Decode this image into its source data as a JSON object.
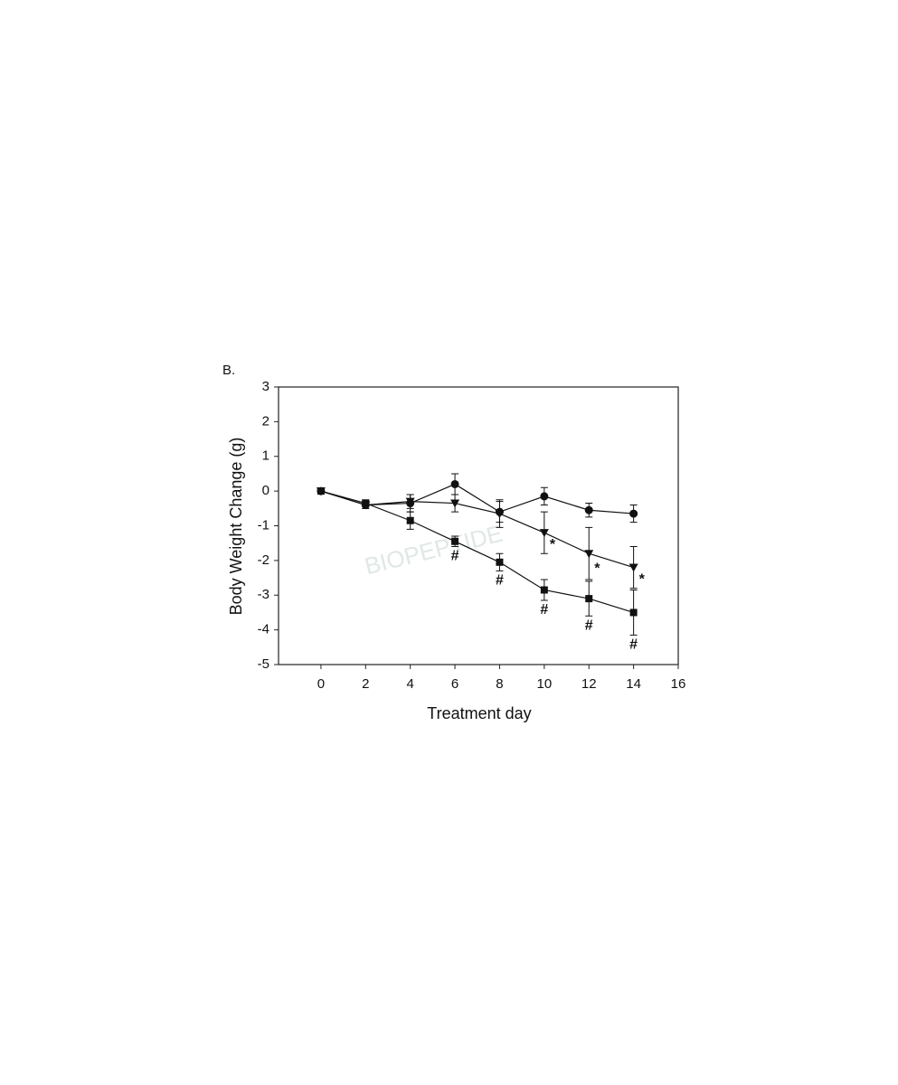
{
  "chart_data": {
    "type": "line",
    "panel_label": "B.",
    "xlabel": "Treatment day",
    "ylabel": "Body Weight Change (g)",
    "watermark": "BIOPEPTIDE",
    "x": [
      0,
      2,
      4,
      6,
      8,
      10,
      12,
      14
    ],
    "xlim": [
      -1.9,
      16
    ],
    "xticks": [
      0,
      2,
      4,
      6,
      8,
      10,
      12,
      14,
      16
    ],
    "ylim": [
      -5,
      3
    ],
    "yticks": [
      -5,
      -4,
      -3,
      -2,
      -1,
      0,
      1,
      2,
      3
    ],
    "series": [
      {
        "marker": "circle",
        "color": "#111111",
        "values": [
          0,
          -0.4,
          -0.35,
          0.2,
          -0.6,
          -0.15,
          -0.55,
          -0.65
        ],
        "errors": [
          0,
          0.1,
          0.25,
          0.3,
          0.3,
          0.25,
          0.2,
          0.25
        ]
      },
      {
        "marker": "triangle",
        "color": "#111111",
        "values": [
          0,
          -0.4,
          -0.3,
          -0.35,
          -0.65,
          -1.2,
          -1.8,
          -2.2
        ],
        "errors": [
          0,
          0.1,
          0.2,
          0.25,
          0.4,
          0.6,
          0.75,
          0.6
        ],
        "labels": [
          null,
          null,
          null,
          null,
          null,
          "*",
          "*",
          "*"
        ]
      },
      {
        "marker": "square",
        "color": "#111111",
        "values": [
          0,
          -0.35,
          -0.85,
          -1.45,
          -2.05,
          -2.85,
          -3.1,
          -3.5
        ],
        "errors": [
          0,
          0.1,
          0.25,
          0.15,
          0.25,
          0.3,
          0.5,
          0.65
        ],
        "labels": [
          null,
          null,
          null,
          "#",
          "#",
          "#",
          "#",
          "#"
        ]
      }
    ]
  }
}
